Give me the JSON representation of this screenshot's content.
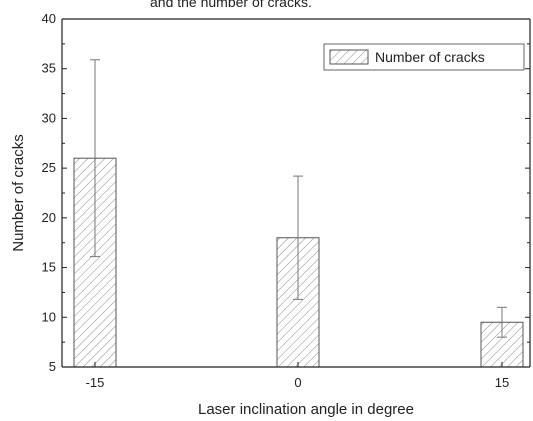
{
  "top_text_fragment": "and the number of cracks.",
  "chart_data": {
    "type": "bar",
    "categories": [
      "-15",
      "0",
      "15"
    ],
    "series": [
      {
        "name": "Number of cracks",
        "values": [
          26,
          18,
          9.5
        ],
        "error_low": [
          16.1,
          11.8,
          8.0
        ],
        "error_high": [
          35.9,
          24.2,
          11.0
        ],
        "pattern": "diagonal-hatch"
      }
    ],
    "xlabel": "Laser inclination angle in degree",
    "ylabel": "Number of cracks",
    "ylim": [
      5,
      40
    ],
    "yticks": [
      "5",
      "10",
      "15",
      "20",
      "25",
      "30",
      "35",
      "40"
    ],
    "grid": false,
    "legend_position": "top-right",
    "colors": {
      "bar_stroke": "#555555",
      "hatch": "#888888",
      "axis": "#222222",
      "error_bar": "#777777"
    }
  }
}
